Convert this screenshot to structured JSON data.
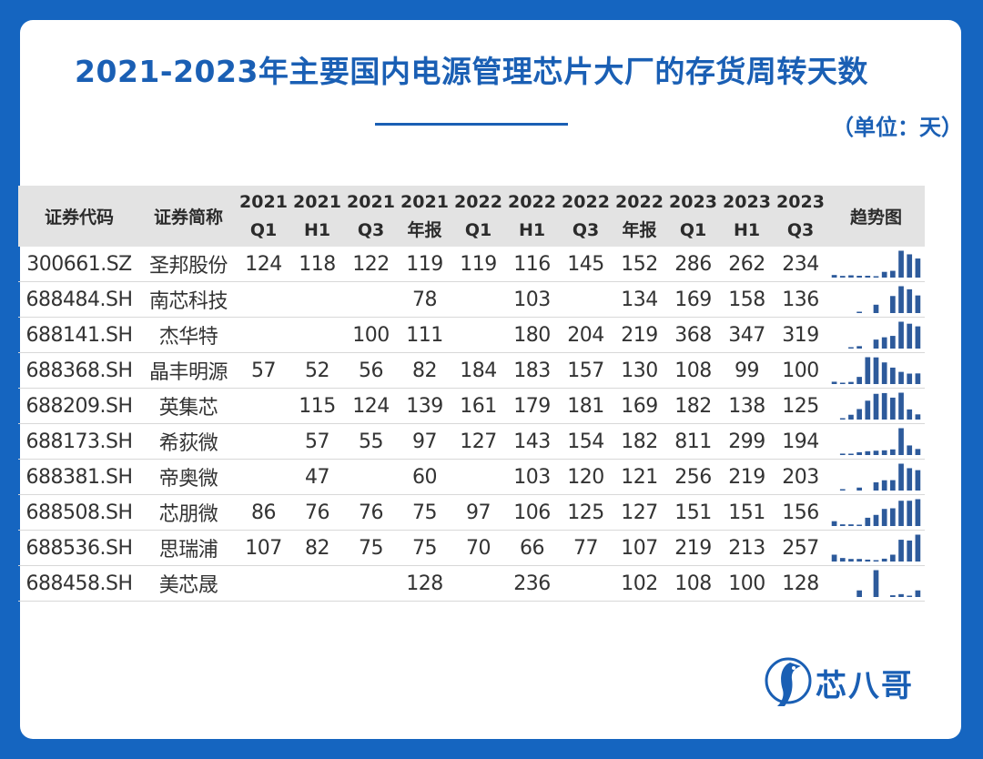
{
  "title": "2021-2023年主要国内电源管理芯片大厂的存货周转天数",
  "unit": "（单位：天）",
  "logo_text": "芯八哥",
  "colors": {
    "background": "#1565c0",
    "title": "#1a5fb4",
    "bar": "#2d5a9b",
    "header_bg": "#e3e3e3"
  },
  "chart_data": {
    "type": "table",
    "columns": {
      "code": "证券代码",
      "name": "证券简称",
      "periods": [
        [
          "2021",
          "Q1"
        ],
        [
          "2021",
          "H1"
        ],
        [
          "2021",
          "Q3"
        ],
        [
          "2021",
          "年报"
        ],
        [
          "2022",
          "Q1"
        ],
        [
          "2022",
          "H1"
        ],
        [
          "2022",
          "Q3"
        ],
        [
          "2022",
          "年报"
        ],
        [
          "2023",
          "Q1"
        ],
        [
          "2023",
          "H1"
        ],
        [
          "2023",
          "Q3"
        ]
      ],
      "trend": "趋势图"
    },
    "rows": [
      {
        "code": "300661.SZ",
        "name": "圣邦股份",
        "values": [
          124,
          118,
          122,
          119,
          119,
          116,
          145,
          152,
          286,
          262,
          234
        ]
      },
      {
        "code": "688484.SH",
        "name": "南芯科技",
        "values": [
          null,
          null,
          null,
          78,
          null,
          103,
          null,
          134,
          169,
          158,
          136
        ]
      },
      {
        "code": "688141.SH",
        "name": "杰华特",
        "values": [
          null,
          null,
          100,
          111,
          null,
          180,
          204,
          219,
          368,
          347,
          319
        ]
      },
      {
        "code": "688368.SH",
        "name": "晶丰明源",
        "values": [
          57,
          52,
          56,
          82,
          184,
          183,
          157,
          130,
          108,
          99,
          100
        ]
      },
      {
        "code": "688209.SH",
        "name": "英集芯",
        "values": [
          null,
          115,
          124,
          139,
          161,
          179,
          181,
          169,
          182,
          138,
          125
        ]
      },
      {
        "code": "688173.SH",
        "name": "希荻微",
        "values": [
          null,
          57,
          55,
          97,
          127,
          143,
          154,
          182,
          811,
          299,
          194
        ]
      },
      {
        "code": "688381.SH",
        "name": "帝奥微",
        "values": [
          null,
          47,
          null,
          60,
          null,
          103,
          120,
          121,
          256,
          219,
          203
        ]
      },
      {
        "code": "688508.SH",
        "name": "芯朋微",
        "values": [
          86,
          76,
          76,
          75,
          97,
          106,
          125,
          127,
          151,
          151,
          156
        ]
      },
      {
        "code": "688536.SH",
        "name": "思瑞浦",
        "values": [
          107,
          82,
          75,
          75,
          70,
          66,
          77,
          107,
          219,
          213,
          257
        ]
      },
      {
        "code": "688458.SH",
        "name": "美芯晟",
        "values": [
          null,
          null,
          null,
          128,
          null,
          236,
          null,
          102,
          108,
          100,
          128
        ]
      }
    ]
  }
}
